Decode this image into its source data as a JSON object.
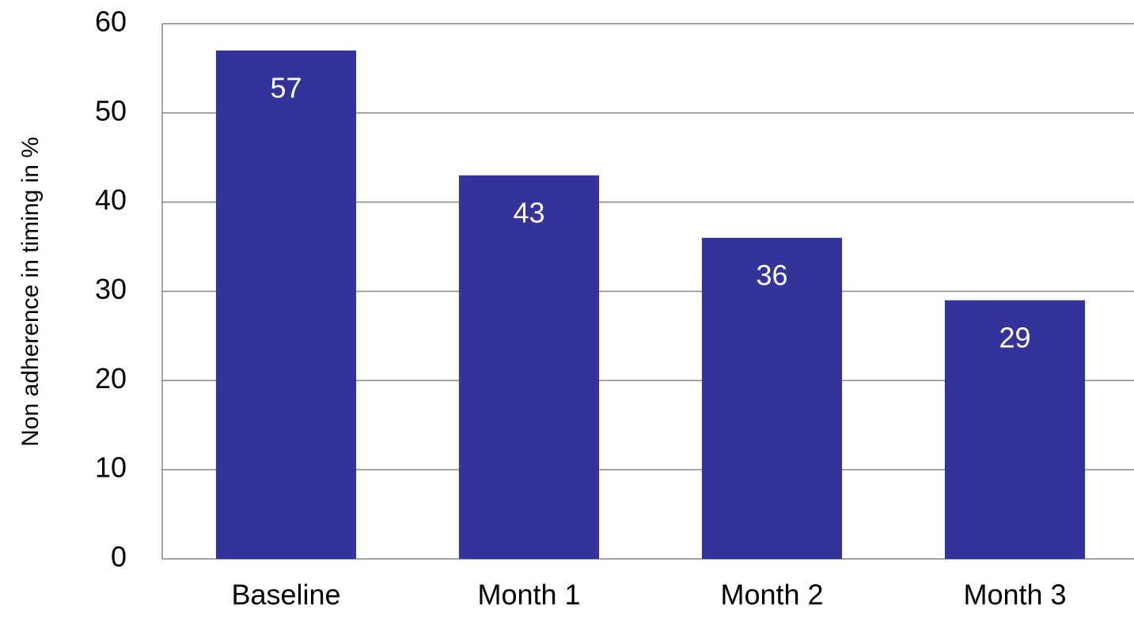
{
  "chart_data": {
    "type": "bar",
    "y_axis_label": "Non adherence in timing in %",
    "categories": [
      "Baseline",
      "Month 1",
      "Month 2",
      "Month 3"
    ],
    "values": [
      57,
      43,
      36,
      29
    ],
    "color": "#333399",
    "value_label_color": "#ffffff",
    "ylim": [
      0,
      60
    ],
    "yticks": [
      0,
      10,
      20,
      30,
      40,
      50,
      60
    ],
    "grid": true
  }
}
